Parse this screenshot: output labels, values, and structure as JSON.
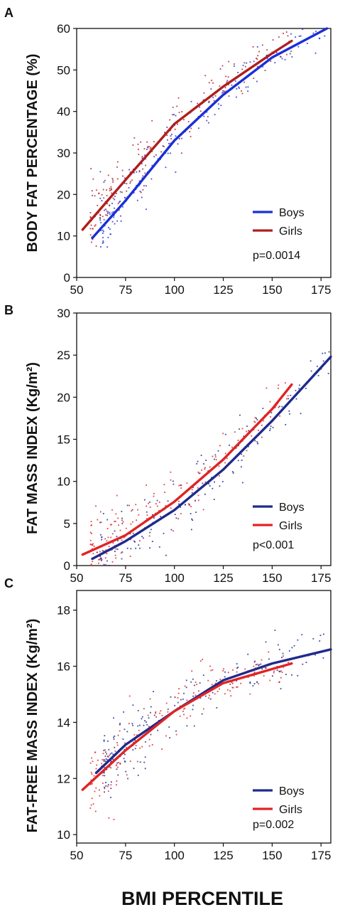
{
  "xlabel": "BMI PERCENTILE",
  "colors": {
    "boys_a": "#1a2fd6",
    "girls_a": "#b01e1e",
    "boys_bc": "#1f2a8c",
    "girls_bc": "#e02424"
  },
  "chart_data": [
    {
      "type": "scatter",
      "panel": "A",
      "ylabel": "BODY FAT PERCENTAGE (%)",
      "xlim": [
        50,
        180
      ],
      "ylim": [
        0,
        60
      ],
      "xticks": [
        "50",
        "75",
        "100",
        "125",
        "150",
        "175"
      ],
      "yticks": [
        "0",
        "10",
        "20",
        "30",
        "40",
        "50",
        "60"
      ],
      "legend": {
        "location": "bottom-right",
        "entries": [
          "Boys",
          "Girls"
        ]
      },
      "annotation": "p=0.0014",
      "series": [
        {
          "name": "Boys",
          "fit_x": [
            58,
            75,
            100,
            125,
            150,
            178
          ],
          "fit_y": [
            9.5,
            18.5,
            33,
            44,
            53,
            60
          ]
        },
        {
          "name": "Girls",
          "fit_x": [
            53,
            75,
            100,
            125,
            150,
            160
          ],
          "fit_y": [
            11.5,
            23.5,
            37,
            46,
            54,
            57
          ]
        }
      ]
    },
    {
      "type": "scatter",
      "panel": "B",
      "ylabel": "FAT MASS INDEX (Kg/m²)",
      "xlim": [
        50,
        180
      ],
      "ylim": [
        0,
        30
      ],
      "xticks": [
        "50",
        "75",
        "100",
        "125",
        "150",
        "175"
      ],
      "yticks": [
        "0",
        "5",
        "10",
        "15",
        "20",
        "25",
        "30"
      ],
      "legend": {
        "location": "bottom-right",
        "entries": [
          "Boys",
          "Girls"
        ]
      },
      "annotation": "p<0.001",
      "series": [
        {
          "name": "Boys",
          "fit_x": [
            58,
            75,
            100,
            125,
            150,
            180
          ],
          "fit_y": [
            0.8,
            2.9,
            6.6,
            11.4,
            17.2,
            24.8
          ]
        },
        {
          "name": "Girls",
          "fit_x": [
            53,
            75,
            100,
            125,
            150,
            160
          ],
          "fit_y": [
            1.3,
            3.6,
            7.6,
            12.6,
            18.6,
            21.5
          ]
        }
      ]
    },
    {
      "type": "scatter",
      "panel": "C",
      "ylabel": "FAT-FREE MASS INDEX (Kg/m²)",
      "xlim": [
        50,
        180
      ],
      "ylim": [
        9.7,
        18.7
      ],
      "xticks": [
        "50",
        "75",
        "100",
        "125",
        "150",
        "175"
      ],
      "yticks": [
        "10",
        "12",
        "14",
        "16",
        "18"
      ],
      "legend": {
        "location": "bottom-right",
        "entries": [
          "Boys",
          "Girls"
        ]
      },
      "annotation": "p=0.002",
      "series": [
        {
          "name": "Boys",
          "fit_x": [
            60,
            75,
            100,
            125,
            150,
            180
          ],
          "fit_y": [
            12.2,
            13.2,
            14.4,
            15.5,
            16.1,
            16.6
          ]
        },
        {
          "name": "Girls",
          "fit_x": [
            53,
            75,
            100,
            125,
            150,
            160
          ],
          "fit_y": [
            11.6,
            13.0,
            14.4,
            15.4,
            15.9,
            16.1
          ]
        }
      ]
    }
  ]
}
